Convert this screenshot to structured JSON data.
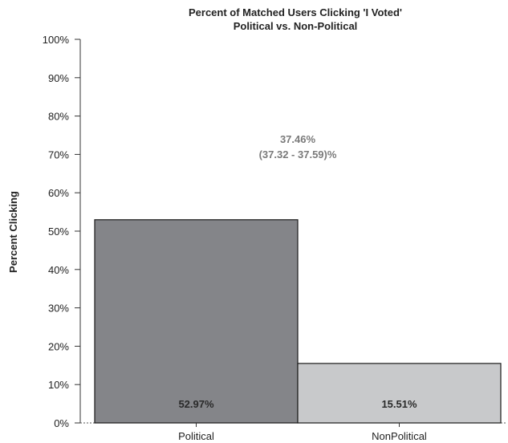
{
  "chart_data": {
    "type": "bar",
    "title": "Percent of Matched Users Clicking 'I Voted'",
    "subtitle": "Political vs. Non-Political",
    "xlabel": "",
    "ylabel": "Percent Clicking",
    "ylim": [
      0,
      100
    ],
    "yticks": [
      "0%",
      "10%",
      "20%",
      "30%",
      "40%",
      "50%",
      "60%",
      "70%",
      "80%",
      "90%",
      "100%"
    ],
    "categories": [
      "Political",
      "NonPolitical"
    ],
    "values": [
      52.97,
      15.51
    ],
    "value_labels": [
      "52.97%",
      "15.51%"
    ],
    "annotation": [
      "37.46%",
      "(37.32 - 37.59)%"
    ],
    "bar_colors": [
      "#848589",
      "#c8c9cb"
    ],
    "grid": false
  }
}
